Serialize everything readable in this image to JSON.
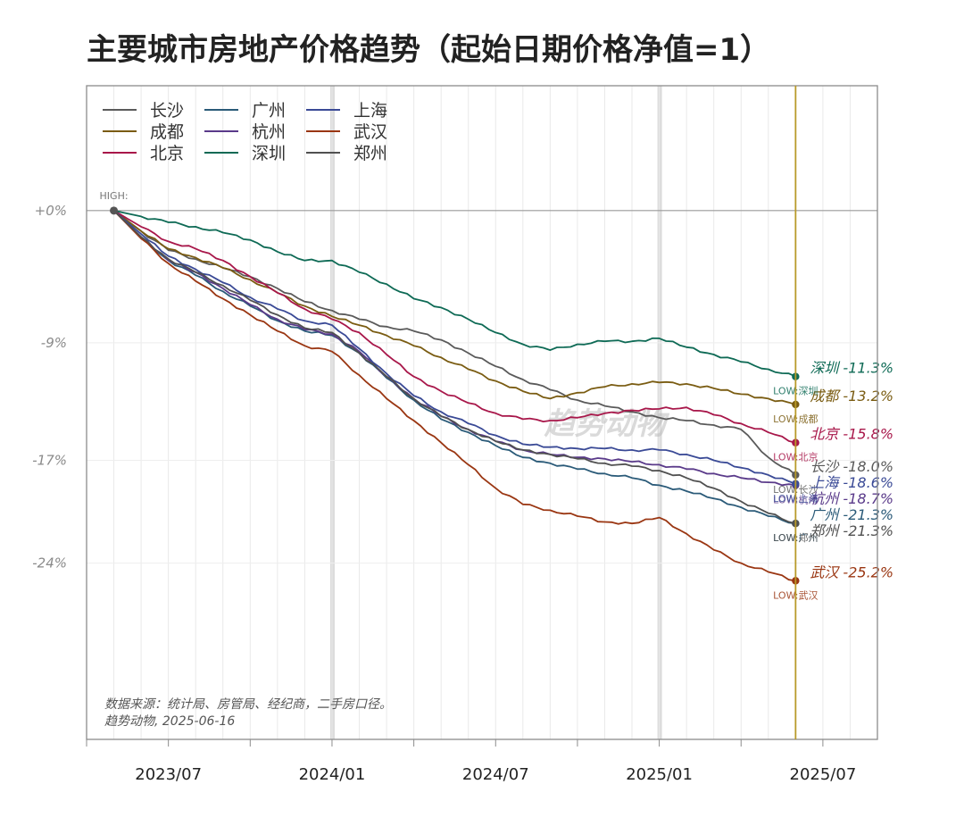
{
  "chart_data": {
    "type": "line",
    "title": "主要城市房地产价格趋势（起始日期价格净值=1）",
    "x_start": "2023-05",
    "x_end": "2025-06",
    "xlim": [
      "2023-04",
      "2025-09"
    ],
    "x_ticks": [
      "2023/07",
      "2024/01",
      "2024/07",
      "2025/01",
      "2025/07"
    ],
    "y_ticks": [
      "+0%",
      "-9%",
      "-17%",
      "-24%"
    ],
    "y_tick_values": [
      0,
      -9,
      -17,
      -24
    ],
    "ylim": [
      -36,
      8.5
    ],
    "grid": true,
    "legend_position": "top-left",
    "high_label": "HIGH:",
    "low_prefix": "LOW:",
    "watermark": "趋势动物",
    "source_note": "数据来源：统计局、房管局、经纪商，二手房口径。",
    "credit_note": "趋势动物, 2025-06-16",
    "series": [
      {
        "name": "长沙",
        "color": "#5a5a5a",
        "end_label": "长沙 -18.0%",
        "values": [
          0,
          -1.4,
          -2.7,
          -3.3,
          -3.9,
          -4.5,
          -5.3,
          -6.2,
          -6.8,
          -7.4,
          -7.9,
          -8.2,
          -8.8,
          -9.7,
          -10.6,
          -11.5,
          -12.2,
          -12.9,
          -13.3,
          -13.7,
          -14.1,
          -14.3,
          -14.6,
          -14.9,
          -16.8,
          -18.0
        ]
      },
      {
        "name": "成都",
        "color": "#7a5c12",
        "end_label": "成都 -13.2%",
        "values": [
          0,
          -1.4,
          -2.6,
          -3.2,
          -3.9,
          -4.7,
          -5.6,
          -6.5,
          -7.2,
          -7.8,
          -8.5,
          -9.2,
          -10.0,
          -10.8,
          -11.6,
          -12.3,
          -12.8,
          -12.4,
          -12.0,
          -11.8,
          -11.7,
          -11.8,
          -12.1,
          -12.5,
          -12.8,
          -13.2
        ]
      },
      {
        "name": "北京",
        "color": "#a8174a",
        "end_label": "北京 -15.8%",
        "values": [
          0,
          -1.1,
          -2.1,
          -2.6,
          -3.4,
          -4.5,
          -5.6,
          -6.7,
          -7.4,
          -8.3,
          -9.8,
          -11.3,
          -12.3,
          -13.1,
          -13.8,
          -14.2,
          -14.3,
          -14.1,
          -13.8,
          -13.6,
          -13.5,
          -13.4,
          -13.9,
          -14.5,
          -15.1,
          -15.8
        ]
      },
      {
        "name": "广州",
        "color": "#2a5a78",
        "end_label": "广州 -21.3%",
        "values": [
          0,
          -1.8,
          -3.4,
          -4.4,
          -5.5,
          -6.5,
          -7.5,
          -8.2,
          -8.5,
          -9.7,
          -11.4,
          -12.9,
          -14.2,
          -15.1,
          -16.0,
          -16.8,
          -17.2,
          -17.6,
          -17.9,
          -18.2,
          -18.7,
          -19.1,
          -19.6,
          -20.2,
          -20.8,
          -21.3
        ]
      },
      {
        "name": "杭州",
        "color": "#5a3a8a",
        "end_label": "杭州 -18.7%",
        "values": [
          0,
          -1.8,
          -3.4,
          -4.2,
          -5.3,
          -6.4,
          -7.4,
          -8.1,
          -8.4,
          -9.6,
          -11.3,
          -12.8,
          -14.0,
          -14.9,
          -15.7,
          -16.3,
          -16.6,
          -16.8,
          -16.9,
          -17.1,
          -17.3,
          -17.6,
          -17.9,
          -18.2,
          -18.5,
          -18.7
        ]
      },
      {
        "name": "深圳",
        "color": "#0e6a55",
        "end_label": "深圳 -11.3%",
        "values": [
          0,
          -0.4,
          -0.8,
          -1.1,
          -1.5,
          -2.0,
          -2.8,
          -3.4,
          -3.4,
          -4.2,
          -5.0,
          -6.0,
          -6.6,
          -7.4,
          -8.3,
          -9.1,
          -9.5,
          -9.1,
          -8.9,
          -8.9,
          -8.7,
          -9.3,
          -9.8,
          -10.3,
          -10.8,
          -11.3
        ]
      },
      {
        "name": "上海",
        "color": "#3a4a96",
        "end_label": "上海 -18.6%",
        "values": [
          0,
          -1.6,
          -3.1,
          -4.0,
          -4.9,
          -5.9,
          -6.7,
          -7.5,
          -7.8,
          -9.4,
          -11.1,
          -12.6,
          -13.7,
          -14.5,
          -15.3,
          -15.9,
          -16.1,
          -16.2,
          -16.2,
          -16.3,
          -16.3,
          -16.6,
          -17.0,
          -17.5,
          -18.0,
          -18.6
        ]
      },
      {
        "name": "武汉",
        "color": "#9a3612",
        "end_label": "武汉 -25.2%",
        "values": [
          0,
          -1.9,
          -3.6,
          -4.8,
          -6.0,
          -7.1,
          -8.2,
          -9.2,
          -9.6,
          -11.2,
          -12.8,
          -14.3,
          -15.8,
          -17.3,
          -18.9,
          -20.0,
          -20.4,
          -20.8,
          -21.2,
          -21.3,
          -20.9,
          -22.0,
          -23.1,
          -24.0,
          -24.6,
          -25.2
        ]
      },
      {
        "name": "郑州",
        "color": "#505050",
        "end_label": "郑州 -21.3%",
        "values": [
          0,
          -1.8,
          -3.3,
          -4.2,
          -5.1,
          -6.1,
          -7.1,
          -8.0,
          -8.3,
          -9.7,
          -11.3,
          -12.8,
          -14.0,
          -14.9,
          -15.7,
          -16.3,
          -16.6,
          -16.9,
          -17.2,
          -17.4,
          -17.7,
          -18.2,
          -18.9,
          -19.8,
          -20.6,
          -21.3
        ]
      }
    ]
  }
}
